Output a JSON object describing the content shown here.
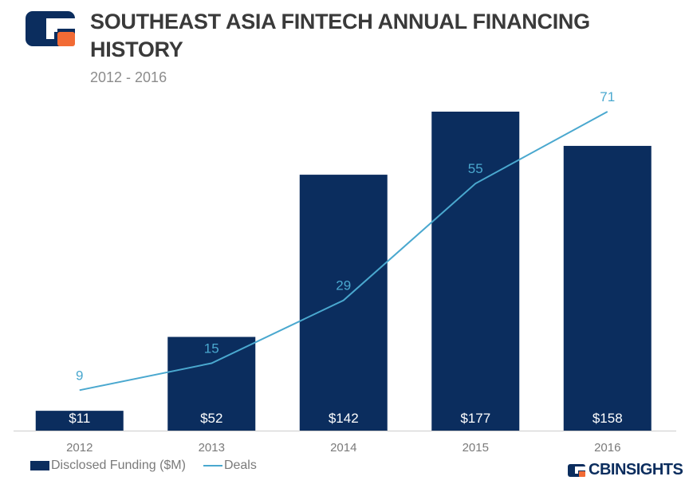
{
  "header": {
    "title": "SOUTHEAST ASIA FINTECH ANNUAL FINANCING HISTORY",
    "subtitle": "2012 - 2016"
  },
  "brand": {
    "name": "CBINSIGHTS",
    "icon": "cb-logo-icon"
  },
  "colors": {
    "bar": "#0b2d5e",
    "line": "#4aa8cf",
    "orange": "#f26b35",
    "axis": "#cccccc"
  },
  "legend": {
    "bar_label": "Disclosed Funding ($M)",
    "line_label": "Deals"
  },
  "chart_data": {
    "type": "bar",
    "categories": [
      "2012",
      "2013",
      "2014",
      "2015",
      "2016"
    ],
    "series": [
      {
        "name": "Disclosed Funding ($M)",
        "type": "bar",
        "values": [
          11,
          52,
          142,
          177,
          158
        ],
        "labels": [
          "$11",
          "$52",
          "$142",
          "$177",
          "$158"
        ]
      },
      {
        "name": "Deals",
        "type": "line",
        "values": [
          9,
          15,
          29,
          55,
          71
        ],
        "labels": [
          "9",
          "15",
          "29",
          "55",
          "71"
        ]
      }
    ],
    "title": "SOUTHEAST ASIA FINTECH ANNUAL FINANCING HISTORY",
    "subtitle": "2012 - 2016",
    "legend_position": "bottom-left",
    "grid": false
  }
}
